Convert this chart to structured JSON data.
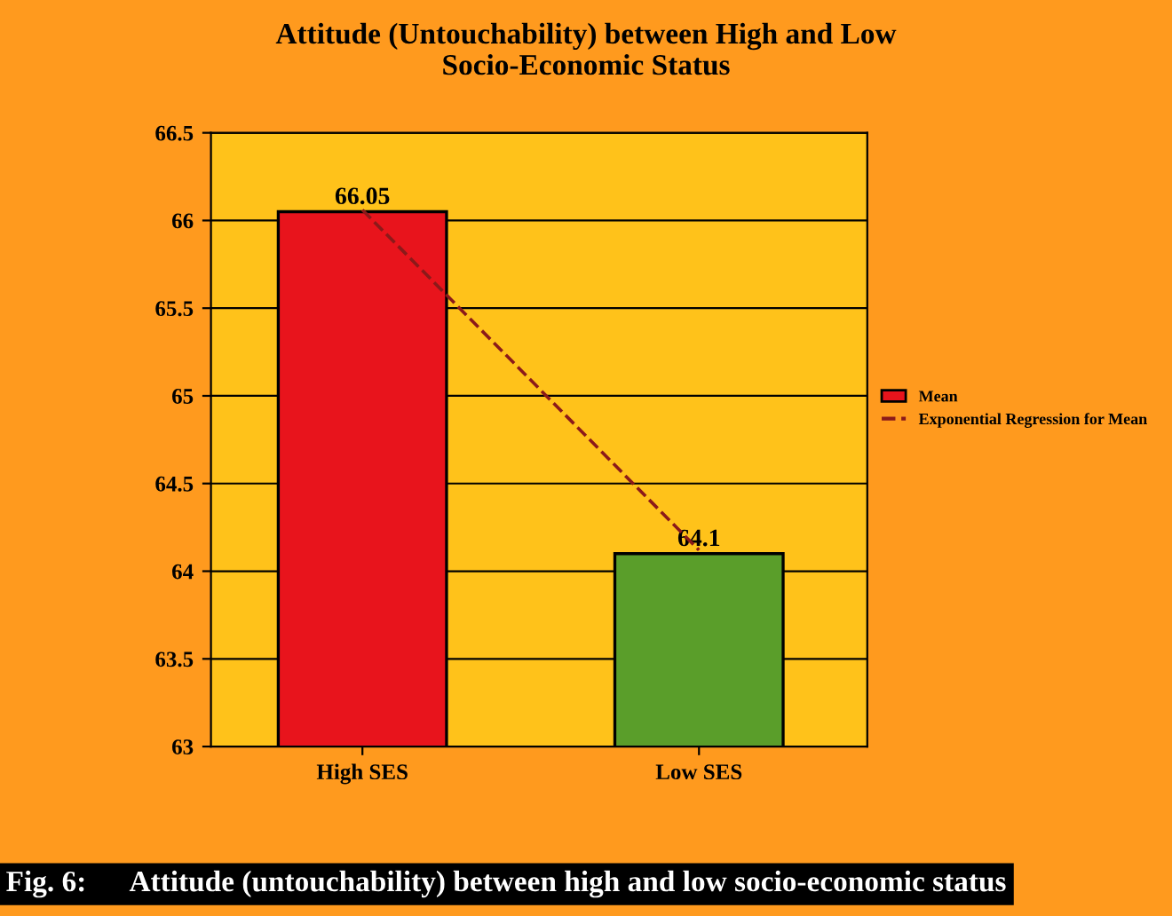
{
  "chart_data": {
    "type": "bar",
    "title": "Attitude (Untouchability) between High and Low\nSocio-Economic Status",
    "categories": [
      "High SES",
      "Low SES"
    ],
    "series": [
      {
        "name": "Mean",
        "colors": [
          "#e8141c",
          "#5a9e2a"
        ],
        "values": [
          66.05,
          64.1
        ],
        "value_labels": [
          "66.05",
          "64.1"
        ]
      },
      {
        "name": "Exponential Regression for Mean",
        "type": "line",
        "color": "#8b1a1a",
        "line_style": "dashed",
        "values": [
          66.06,
          64.12
        ]
      }
    ],
    "ylim": [
      63,
      66.5
    ],
    "yticks": [
      63,
      63.5,
      64,
      64.5,
      65,
      65.5,
      66,
      66.5
    ],
    "grid": "y",
    "legend": "right",
    "annotations": [
      "Fig. 6:      Attitude (untouchability) between high and low socio-economic status"
    ]
  }
}
